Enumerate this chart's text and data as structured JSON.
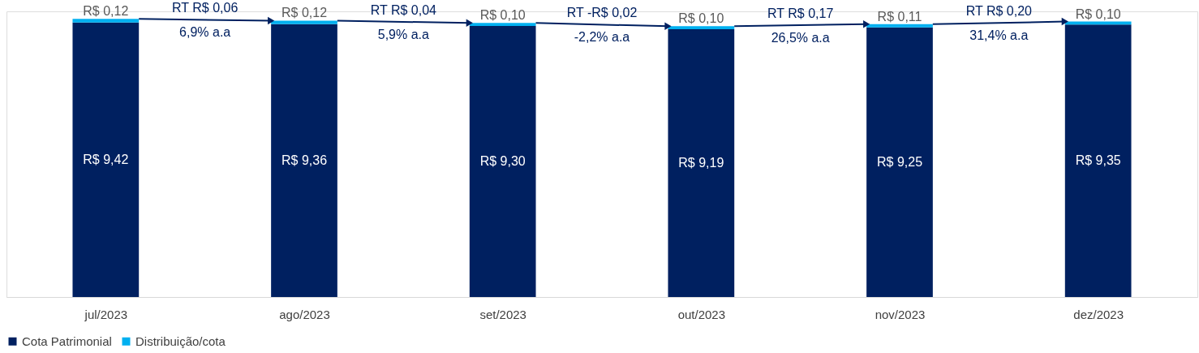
{
  "chart_data": {
    "type": "bar",
    "stacked": true,
    "categories": [
      "jul/2023",
      "ago/2023",
      "set/2023",
      "out/2023",
      "nov/2023",
      "dez/2023"
    ],
    "series": [
      {
        "name": "Cota Patrimonial",
        "color": "#002060",
        "values": [
          9.42,
          9.36,
          9.3,
          9.19,
          9.25,
          9.35
        ],
        "value_labels": [
          "R$ 9,42",
          "R$ 9,36",
          "R$ 9,30",
          "R$ 9,19",
          "R$ 9,25",
          "R$ 9,35"
        ]
      },
      {
        "name": "Distribuição/cota",
        "color": "#00b0f0",
        "values": [
          0.12,
          0.12,
          0.1,
          0.1,
          0.11,
          0.1
        ],
        "value_labels": [
          "R$ 0,12",
          "R$ 0,12",
          "R$ 0,10",
          "R$ 0,10",
          "R$ 0,11",
          "R$ 0,10"
        ]
      }
    ],
    "ylim": [
      0,
      9.8
    ],
    "annotations": [
      "RT R$ 0,06",
      "6,9% a.a",
      "RT R$ 0,04",
      "5,9% a.a",
      "RT -R$ 0,02",
      "-2,2% a.a",
      "RT R$ 0,17",
      "26,5% a.a",
      "RT R$ 0,20",
      "31,4% a.a"
    ],
    "legend": "bottom",
    "grid": false
  }
}
